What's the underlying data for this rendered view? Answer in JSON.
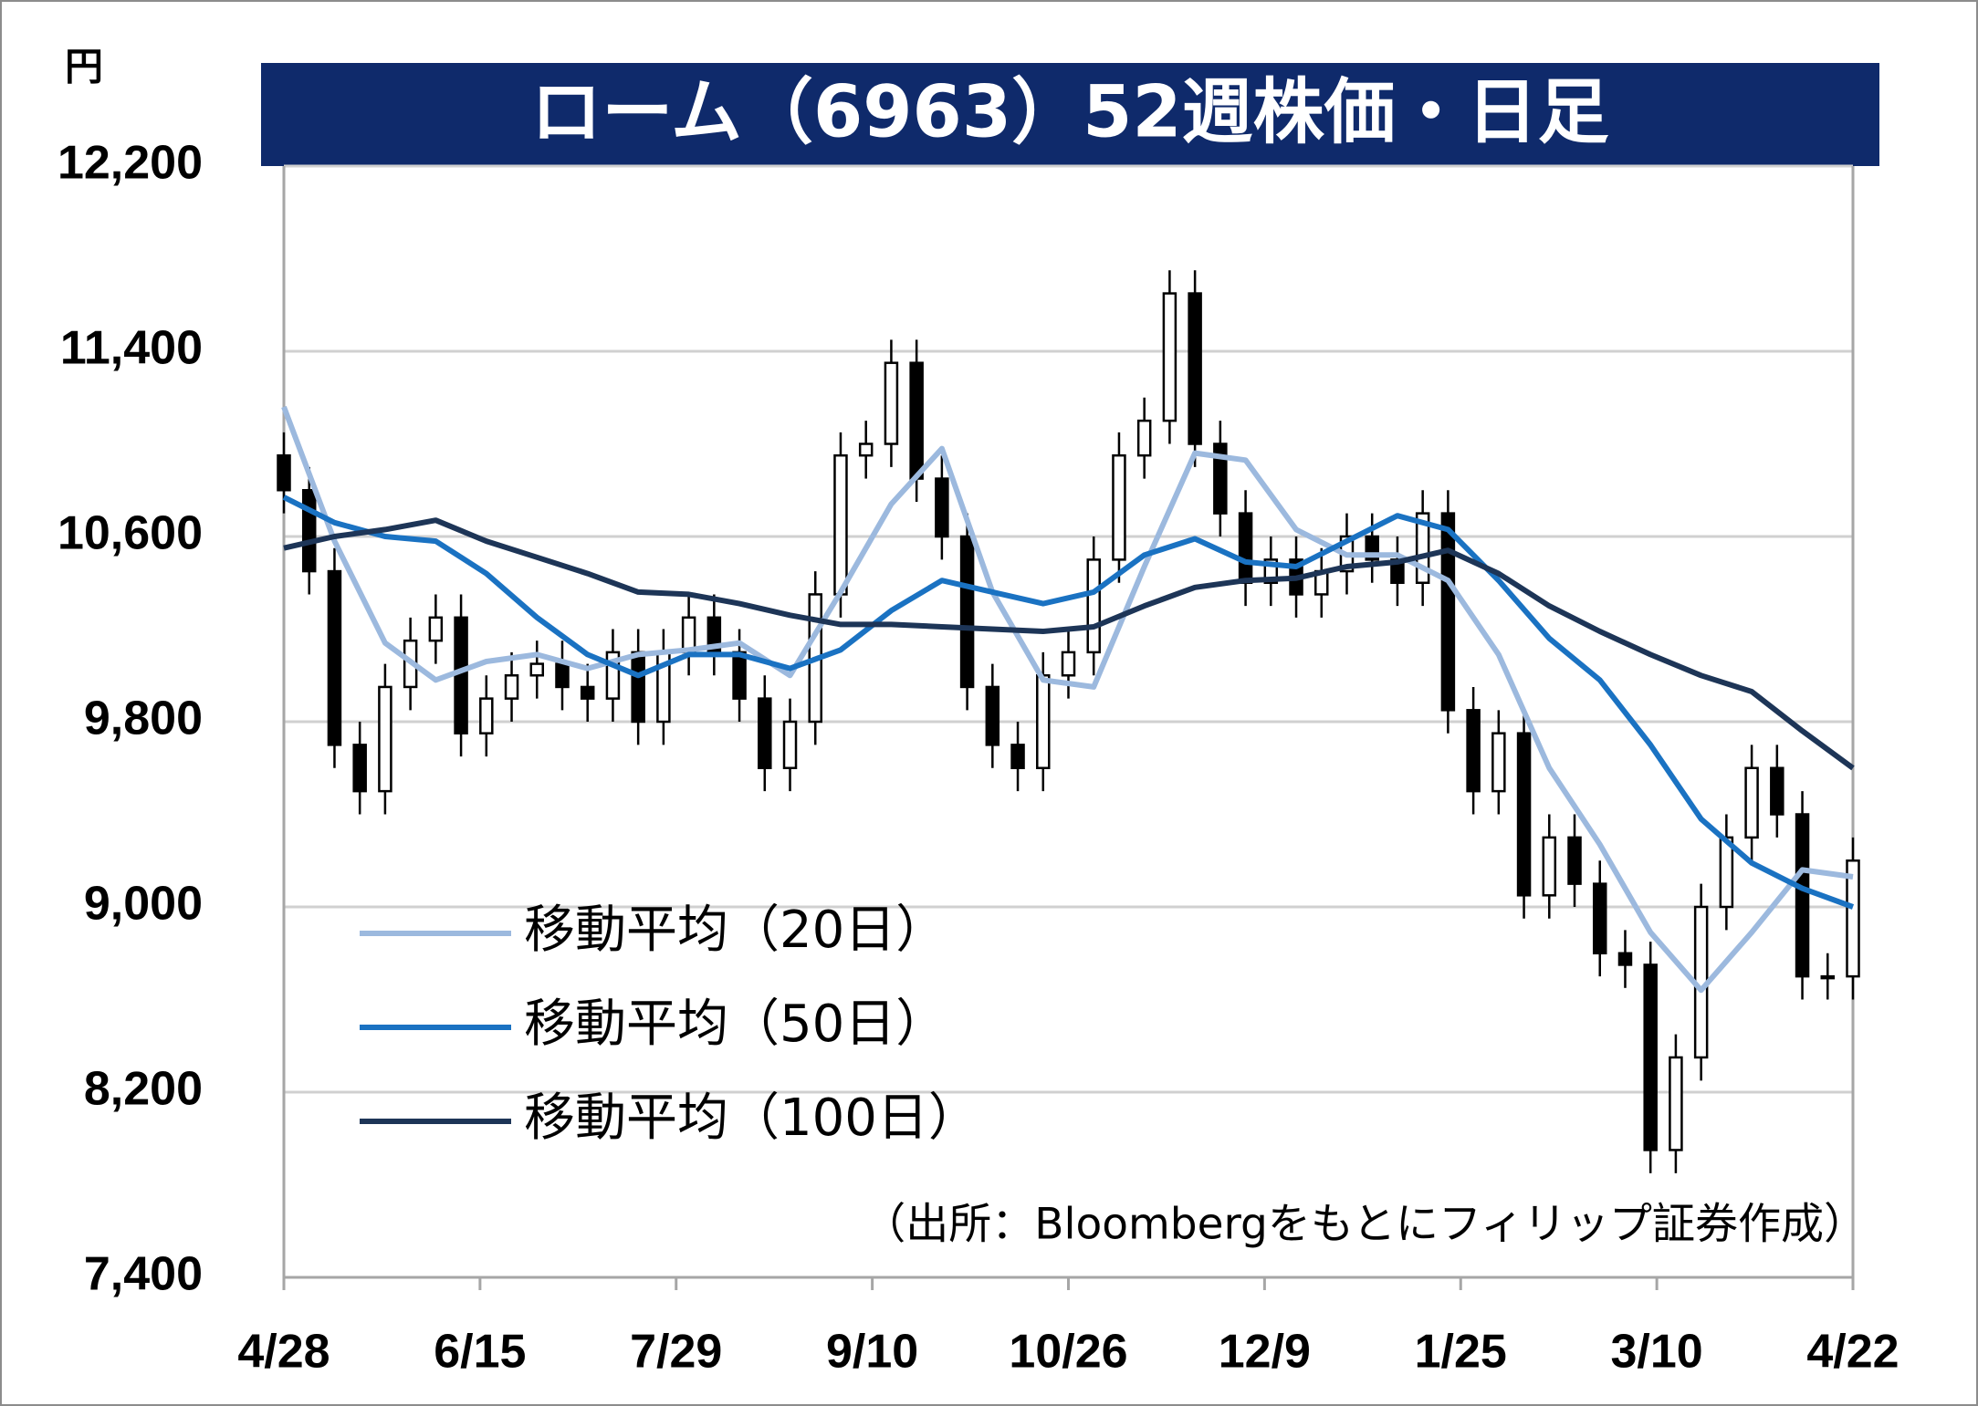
{
  "chart_data": {
    "type": "candlestick",
    "title": "ローム（6963）52週株価・日足",
    "y_unit": "円",
    "source": "（出所：Bloombergをもとにフィリップ証券作成）",
    "x": [
      0,
      4,
      8,
      12,
      16,
      20,
      24,
      28,
      32,
      36,
      40,
      44,
      48,
      52,
      56,
      60,
      64,
      68,
      72,
      76,
      80,
      84,
      88,
      92,
      96,
      100,
      104,
      108,
      112,
      116,
      120,
      124,
      128,
      132,
      136,
      140,
      144,
      148,
      152,
      156,
      160,
      164,
      168,
      172,
      176,
      180,
      184,
      188,
      192,
      196,
      200,
      204,
      208,
      212,
      216,
      220,
      224,
      228,
      232,
      236,
      240,
      244,
      248
    ],
    "open": [
      10950,
      10800,
      10450,
      9700,
      9500,
      9950,
      10150,
      10250,
      9750,
      9900,
      10000,
      10050,
      9950,
      9900,
      10100,
      9800,
      10100,
      10250,
      10100,
      9900,
      9600,
      9800,
      10350,
      10950,
      11000,
      11350,
      10850,
      10600,
      9950,
      9700,
      9600,
      10000,
      10100,
      10500,
      10950,
      11100,
      11650,
      11000,
      10700,
      10400,
      10500,
      10350,
      10450,
      10600,
      10500,
      10400,
      10700,
      9850,
      9500,
      9750,
      9050,
      9300,
      9100,
      8800,
      8750,
      7950,
      8350,
      9000,
      9300,
      9600,
      9400,
      8700,
      8700
    ],
    "high": [
      11050,
      10900,
      10550,
      9800,
      10050,
      10250,
      10350,
      10350,
      10000,
      10100,
      10150,
      10150,
      10050,
      10200,
      10200,
      10200,
      10350,
      10350,
      10200,
      10000,
      9900,
      10450,
      11050,
      11100,
      11450,
      11450,
      10950,
      10700,
      10050,
      9800,
      10100,
      10200,
      10600,
      11050,
      11200,
      11750,
      11750,
      11100,
      10800,
      10600,
      10600,
      10550,
      10700,
      10700,
      10600,
      10800,
      10800,
      9950,
      9850,
      9850,
      9400,
      9400,
      9200,
      8900,
      8850,
      8450,
      9100,
      9400,
      9700,
      9700,
      9500,
      8800,
      9300
    ],
    "low": [
      10700,
      10350,
      9600,
      9400,
      9400,
      9850,
      10050,
      9650,
      9650,
      9800,
      9900,
      9850,
      9800,
      9800,
      9700,
      9700,
      10000,
      10000,
      9800,
      9500,
      9500,
      9700,
      10250,
      10850,
      10900,
      10750,
      10500,
      9850,
      9600,
      9500,
      9500,
      9900,
      10000,
      10400,
      10850,
      11000,
      10900,
      10600,
      10300,
      10300,
      10250,
      10250,
      10350,
      10400,
      10300,
      10300,
      9750,
      9400,
      9400,
      8950,
      8950,
      9000,
      8700,
      8650,
      7850,
      7850,
      8250,
      8900,
      9200,
      9300,
      8600,
      8600,
      8600
    ],
    "close": [
      10800,
      10450,
      9700,
      9500,
      9950,
      10150,
      10250,
      9750,
      9900,
      10000,
      10050,
      9950,
      9900,
      10100,
      9800,
      10100,
      10250,
      10100,
      9900,
      9600,
      9800,
      10350,
      10950,
      11000,
      11350,
      10850,
      10600,
      9950,
      9700,
      9600,
      10000,
      10100,
      10500,
      10950,
      11100,
      11650,
      11000,
      10700,
      10400,
      10500,
      10350,
      10450,
      10600,
      10500,
      10400,
      10700,
      9850,
      9500,
      9750,
      9050,
      9300,
      9100,
      8800,
      8750,
      7950,
      8350,
      9000,
      9300,
      9600,
      9400,
      8700,
      8700,
      9200
    ],
    "xlim": [
      0,
      248
    ],
    "xticks": [
      {
        "value": 0,
        "label": "4/28"
      },
      {
        "value": 31,
        "label": "6/15"
      },
      {
        "value": 62,
        "label": "7/29"
      },
      {
        "value": 93,
        "label": "9/10"
      },
      {
        "value": 124,
        "label": "10/26"
      },
      {
        "value": 155,
        "label": "12/9"
      },
      {
        "value": 186,
        "label": "1/25"
      },
      {
        "value": 217,
        "label": "3/10"
      },
      {
        "value": 248,
        "label": "4/22"
      }
    ],
    "ylim": [
      7400,
      12200
    ],
    "yticks": [
      {
        "value": 7400,
        "label": "7,400"
      },
      {
        "value": 8200,
        "label": "8,200"
      },
      {
        "value": 9000,
        "label": "9,000"
      },
      {
        "value": 9800,
        "label": "9,800"
      },
      {
        "value": 10600,
        "label": "10,600"
      },
      {
        "value": 11400,
        "label": "11,400"
      },
      {
        "value": 12200,
        "label": "12,200"
      }
    ],
    "grid": true,
    "series": [
      {
        "name": "移動平均（20日）",
        "color": "#9cb9de",
        "x": [
          0,
          8,
          16,
          24,
          32,
          40,
          48,
          56,
          64,
          72,
          80,
          88,
          96,
          104,
          112,
          120,
          128,
          136,
          144,
          152,
          160,
          168,
          176,
          184,
          192,
          200,
          208,
          216,
          224,
          232,
          240,
          248
        ],
        "values": [
          11160,
          10580,
          10140,
          9980,
          10060,
          10090,
          10030,
          10090,
          10110,
          10140,
          10000,
          10360,
          10740,
          10980,
          10360,
          9980,
          9950,
          10470,
          10960,
          10930,
          10630,
          10520,
          10520,
          10410,
          10090,
          9600,
          9270,
          8890,
          8640,
          8890,
          9160,
          9130
        ]
      },
      {
        "name": "移動平均（50日）",
        "color": "#1a72c2",
        "x": [
          0,
          8,
          16,
          24,
          32,
          40,
          48,
          56,
          64,
          72,
          80,
          88,
          96,
          104,
          112,
          120,
          128,
          136,
          144,
          152,
          160,
          168,
          176,
          184,
          192,
          200,
          208,
          216,
          224,
          232,
          240,
          248
        ],
        "values": [
          10770,
          10660,
          10600,
          10580,
          10440,
          10250,
          10090,
          10000,
          10090,
          10090,
          10030,
          10110,
          10280,
          10410,
          10360,
          10310,
          10360,
          10520,
          10590,
          10490,
          10470,
          10580,
          10690,
          10630,
          10410,
          10160,
          9980,
          9700,
          9380,
          9190,
          9080,
          9000
        ]
      },
      {
        "name": "移動平均（100日）",
        "color": "#1d3557",
        "x": [
          0,
          8,
          16,
          24,
          32,
          40,
          48,
          56,
          64,
          72,
          80,
          88,
          96,
          104,
          112,
          120,
          128,
          136,
          144,
          152,
          160,
          168,
          176,
          184,
          192,
          200,
          208,
          216,
          224,
          232,
          240,
          248
        ],
        "values": [
          10550,
          10600,
          10630,
          10670,
          10580,
          10510,
          10440,
          10360,
          10350,
          10310,
          10260,
          10220,
          10220,
          10210,
          10200,
          10190,
          10210,
          10300,
          10380,
          10410,
          10420,
          10470,
          10490,
          10540,
          10440,
          10300,
          10190,
          10090,
          10000,
          9930,
          9760,
          9600
        ]
      }
    ]
  }
}
